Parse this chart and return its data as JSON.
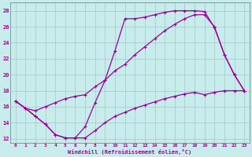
{
  "xlabel": "Windchill (Refroidissement éolien,°C)",
  "bg_color": "#c8ecec",
  "line_color": "#990099",
  "grid_color": "#aacccc",
  "spine_color": "#888888",
  "xlim": [
    -0.5,
    23.5
  ],
  "ylim": [
    11.5,
    29.0
  ],
  "xticks": [
    0,
    1,
    2,
    3,
    4,
    5,
    6,
    7,
    8,
    9,
    10,
    11,
    12,
    13,
    14,
    15,
    16,
    17,
    18,
    19,
    20,
    21,
    22,
    23
  ],
  "yticks": [
    12,
    14,
    16,
    18,
    20,
    22,
    24,
    26,
    28
  ],
  "line1_x": [
    0,
    1,
    2,
    3,
    4,
    5,
    6,
    7,
    8,
    9,
    10,
    11,
    12,
    13,
    14,
    15,
    16,
    17,
    18,
    19,
    20,
    21,
    22,
    23
  ],
  "line1_y": [
    16.7,
    15.8,
    14.8,
    13.8,
    12.5,
    12.1,
    12.1,
    13.5,
    16.5,
    19.3,
    23.0,
    27.0,
    27.0,
    27.2,
    27.5,
    27.8,
    28.0,
    28.0,
    28.0,
    27.9,
    25.9,
    22.5,
    20.0,
    18.0
  ],
  "line2_x": [
    0,
    1,
    2,
    3,
    4,
    5,
    6,
    7,
    8,
    9,
    10,
    11,
    12,
    13,
    14,
    15,
    16,
    17,
    18,
    19,
    20,
    21,
    22,
    23
  ],
  "line2_y": [
    16.7,
    15.8,
    15.5,
    16.0,
    16.5,
    17.0,
    17.3,
    17.5,
    18.5,
    19.3,
    20.5,
    21.3,
    22.5,
    23.5,
    24.5,
    25.5,
    26.3,
    27.0,
    27.5,
    27.5,
    26.0,
    22.5,
    20.0,
    18.0
  ],
  "line3_x": [
    0,
    1,
    2,
    3,
    4,
    5,
    6,
    7,
    8,
    9,
    10,
    11,
    12,
    13,
    14,
    15,
    16,
    17,
    18,
    19,
    20,
    21,
    22,
    23
  ],
  "line3_y": [
    16.7,
    15.8,
    14.8,
    13.8,
    12.5,
    12.1,
    12.1,
    12.1,
    13.0,
    14.0,
    14.8,
    15.3,
    15.8,
    16.2,
    16.6,
    17.0,
    17.3,
    17.6,
    17.8,
    17.5,
    17.8,
    18.0,
    18.0,
    18.0
  ]
}
